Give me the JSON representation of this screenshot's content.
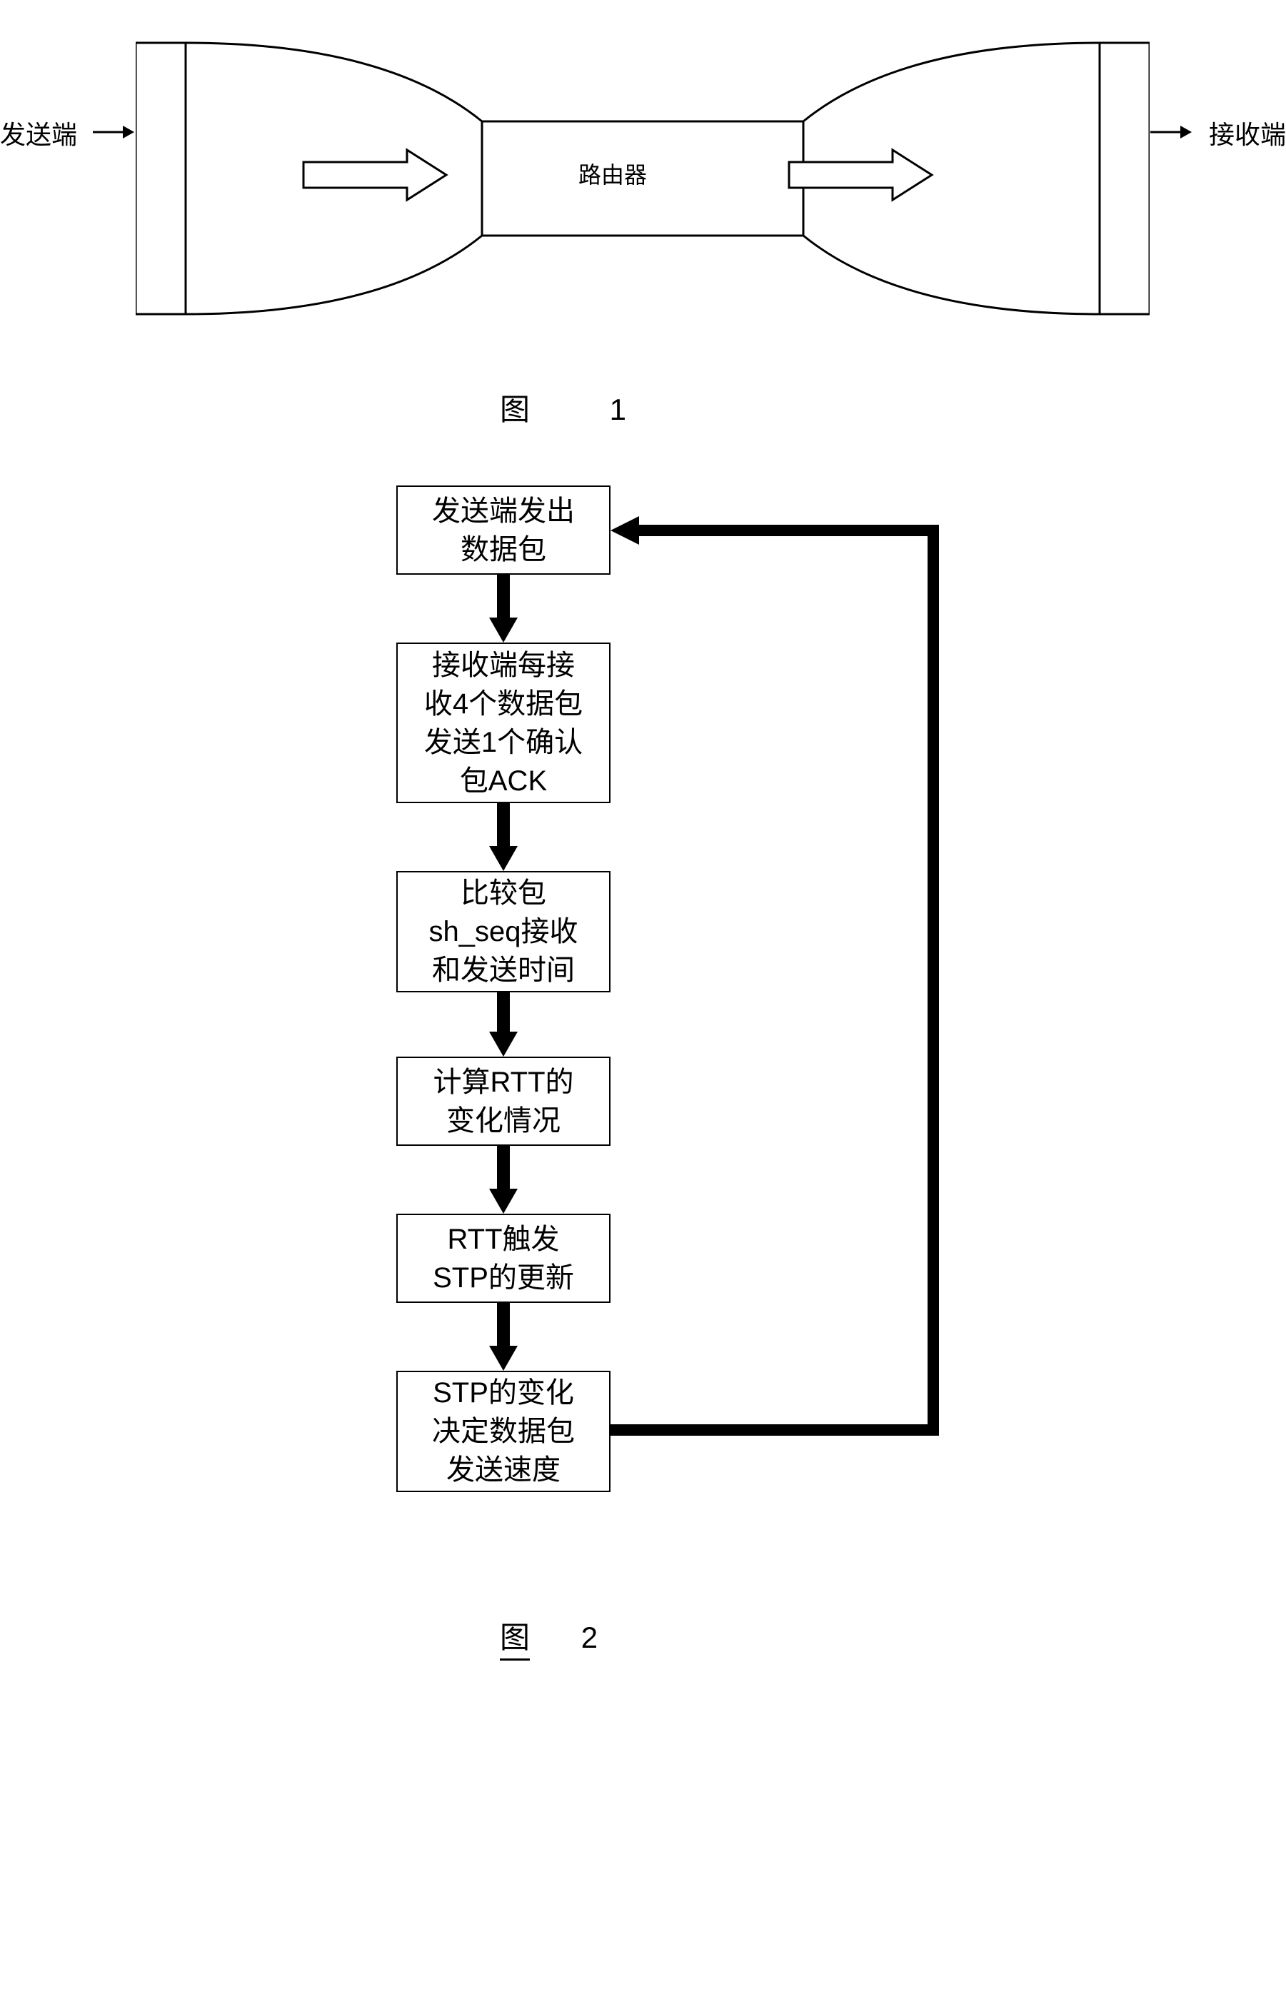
{
  "figure1": {
    "sender_label": "发送端",
    "receiver_label": "接收端",
    "router_label": "路由器",
    "caption": "图 1",
    "colors": {
      "stroke": "#000000",
      "fill": "#ffffff",
      "background": "#ffffff"
    },
    "stroke_width": 3,
    "arrow_stroke_width": 3,
    "layout": {
      "pipe_width": 1420,
      "pipe_height": 400,
      "endcap_width": 70,
      "neck_height": 160
    }
  },
  "figure2": {
    "caption_label": "图",
    "caption_number": "2",
    "boxes": [
      {
        "id": "box1",
        "text": "发送端发出\n数据包"
      },
      {
        "id": "box2",
        "text": "接收端每接\n收4个数据包\n发送1个确认\n包ACK"
      },
      {
        "id": "box3",
        "text": "比较包\nsh_seq接收\n和发送时间"
      },
      {
        "id": "box4",
        "text": "计算RTT的\n变化情况"
      },
      {
        "id": "box5",
        "text": "RTT触发\nSTP的更新"
      },
      {
        "id": "box6",
        "text": "STP的变化\n决定数据包\n发送速度"
      }
    ],
    "colors": {
      "box_stroke": "#000000",
      "box_fill": "#ffffff",
      "arrow_fill": "#000000",
      "text": "#000000"
    },
    "arrow_width": 18,
    "arrow_head_width": 40,
    "font_size": 40,
    "box_stroke_width": 2.5,
    "feedback_line_width": 16
  }
}
